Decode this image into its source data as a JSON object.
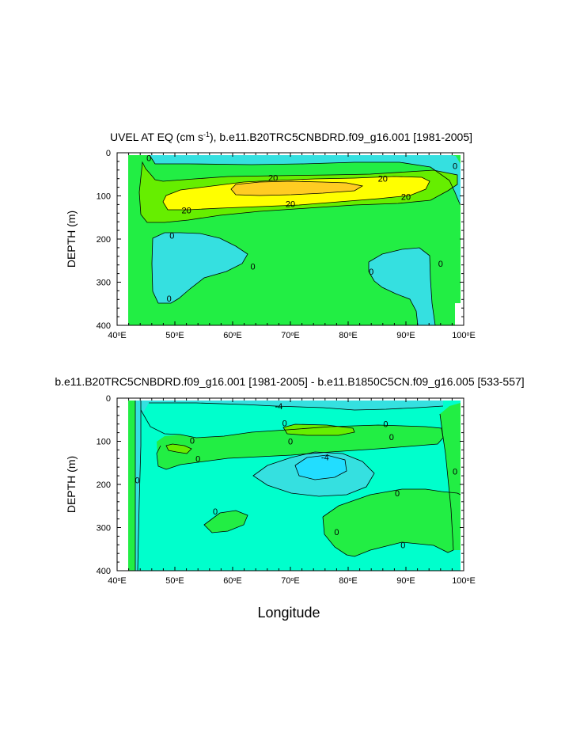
{
  "figure": {
    "xlabel": "Longitude"
  },
  "colors": {
    "cyan": "#35e0e0",
    "aqua": "#00ffcc",
    "green": "#22ee44",
    "lime": "#66ee00",
    "yellow": "#ffff00",
    "orange": "#ffcc22",
    "light_blue": "#22ddff"
  },
  "chart_data": [
    {
      "type": "contour",
      "title_main": "UVEL AT EQ (cm s",
      "title_sup": "-1",
      "title_rest": "), b.e11.B20TRC5CNBDRD.f09_g16.001 [1981-2005]",
      "ylabel": "DEPTH (m)",
      "xlim": [
        40,
        100
      ],
      "ylim": [
        0,
        400
      ],
      "y_inverted": true,
      "x_ticks": [
        40,
        50,
        60,
        70,
        80,
        90,
        100
      ],
      "y_ticks": [
        0,
        100,
        200,
        300,
        400
      ],
      "contour_labels": [
        {
          "text": "0",
          "lon": 45.5,
          "depth": 12
        },
        {
          "text": "0",
          "lon": 98.5,
          "depth": 30
        },
        {
          "text": "20",
          "lon": 67,
          "depth": 58
        },
        {
          "text": "20",
          "lon": 86,
          "depth": 60
        },
        {
          "text": "20",
          "lon": 90,
          "depth": 102
        },
        {
          "text": "20",
          "lon": 70,
          "depth": 118
        },
        {
          "text": "20",
          "lon": 52,
          "depth": 133
        },
        {
          "text": "0",
          "lon": 49.5,
          "depth": 192
        },
        {
          "text": "0",
          "lon": 63.5,
          "depth": 263
        },
        {
          "text": "0",
          "lon": 84,
          "depth": 275
        },
        {
          "text": "0",
          "lon": 96,
          "depth": 257
        },
        {
          "text": "0",
          "lon": 49,
          "depth": 338
        }
      ]
    },
    {
      "type": "contour",
      "title_main": "b.e11.B20TRC5CNBDRD.f09_g16.001 [1981-2005] - b.e11.B1850C5CN.f09_g16.005 [533-557]",
      "ylabel": "DEPTH (m)",
      "xlim": [
        40,
        100
      ],
      "ylim": [
        0,
        400
      ],
      "y_inverted": true,
      "x_ticks": [
        40,
        50,
        60,
        70,
        80,
        90,
        100
      ],
      "y_ticks": [
        0,
        100,
        200,
        300,
        400
      ],
      "contour_labels": [
        {
          "text": "-4",
          "lon": 68,
          "depth": 18
        },
        {
          "text": "0",
          "lon": 69,
          "depth": 58
        },
        {
          "text": "0",
          "lon": 86.5,
          "depth": 60
        },
        {
          "text": "0",
          "lon": 87.5,
          "depth": 90
        },
        {
          "text": "0",
          "lon": 70,
          "depth": 100
        },
        {
          "text": "0",
          "lon": 53,
          "depth": 98
        },
        {
          "text": "0",
          "lon": 54,
          "depth": 140
        },
        {
          "text": "-4",
          "lon": 76,
          "depth": 137
        },
        {
          "text": "0",
          "lon": 43.5,
          "depth": 190
        },
        {
          "text": "0",
          "lon": 98.5,
          "depth": 170
        },
        {
          "text": "0",
          "lon": 88.5,
          "depth": 220
        },
        {
          "text": "0",
          "lon": 57,
          "depth": 262
        },
        {
          "text": "0",
          "lon": 78,
          "depth": 310
        },
        {
          "text": "0",
          "lon": 89.5,
          "depth": 340
        }
      ]
    }
  ]
}
